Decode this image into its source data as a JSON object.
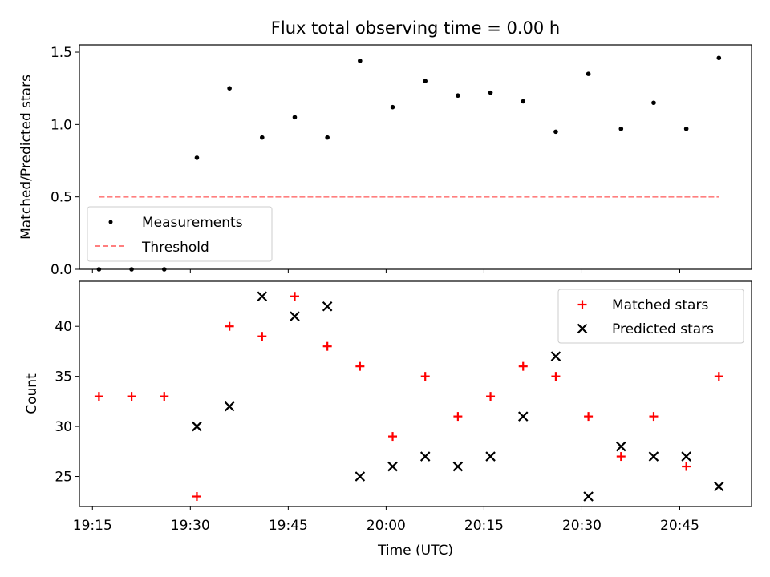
{
  "chart_data": [
    {
      "type": "scatter",
      "title": "Flux total observing time = 0.00 h",
      "xlabel": "",
      "ylabel": "Matched/Predicted stars",
      "ylim": [
        0,
        1.55
      ],
      "yticks": [
        0.0,
        0.5,
        1.0,
        1.5
      ],
      "ytick_labels": [
        "0.0",
        "0.5",
        "1.0",
        "1.5"
      ],
      "legend_position": "lower-left",
      "grid": false,
      "series": [
        {
          "name": "Measurements",
          "marker": "dot",
          "color": "#000000",
          "x": [
            "19:16",
            "19:21",
            "19:26",
            "19:31",
            "19:36",
            "19:41",
            "19:46",
            "19:51",
            "19:56",
            "20:01",
            "20:06",
            "20:11",
            "20:16",
            "20:21",
            "20:26",
            "20:31",
            "20:36",
            "20:41",
            "20:46",
            "20:51"
          ],
          "y": [
            0.0,
            0.0,
            0.0,
            0.77,
            1.25,
            0.91,
            1.05,
            0.91,
            1.44,
            1.12,
            1.3,
            1.2,
            1.22,
            1.16,
            0.95,
            1.35,
            0.97,
            1.15,
            0.97,
            1.46
          ]
        },
        {
          "name": "Threshold",
          "marker": "dashed-line",
          "color": "#ff7f7f",
          "x": [
            "19:16",
            "20:51"
          ],
          "y": [
            0.5,
            0.5
          ]
        }
      ]
    },
    {
      "type": "scatter",
      "title": "",
      "xlabel": "Time (UTC)",
      "ylabel": "Count",
      "ylim": [
        22,
        44.5
      ],
      "yticks": [
        25,
        30,
        35,
        40
      ],
      "ytick_labels": [
        "25",
        "30",
        "35",
        "40"
      ],
      "xlim": [
        "19:13",
        "20:56"
      ],
      "xticks": [
        "19:15",
        "19:30",
        "19:45",
        "20:00",
        "20:15",
        "20:30",
        "20:45"
      ],
      "legend_position": "upper-right",
      "grid": false,
      "series": [
        {
          "name": "Matched stars",
          "marker": "plus",
          "color": "#ff0000",
          "x": [
            "19:16",
            "19:21",
            "19:26",
            "19:31",
            "19:36",
            "19:41",
            "19:46",
            "19:51",
            "19:56",
            "20:01",
            "20:06",
            "20:11",
            "20:16",
            "20:21",
            "20:26",
            "20:31",
            "20:36",
            "20:41",
            "20:46",
            "20:51"
          ],
          "y": [
            33,
            33,
            33,
            23,
            40,
            39,
            43,
            38,
            36,
            29,
            35,
            31,
            33,
            36,
            35,
            31,
            27,
            31,
            26,
            35
          ]
        },
        {
          "name": "Predicted stars",
          "marker": "x",
          "color": "#000000",
          "x": [
            "19:31",
            "19:36",
            "19:41",
            "19:46",
            "19:51",
            "19:56",
            "20:01",
            "20:06",
            "20:11",
            "20:16",
            "20:21",
            "20:26",
            "20:31",
            "20:36",
            "20:41",
            "20:46",
            "20:51"
          ],
          "y": [
            30,
            32,
            43,
            41,
            42,
            25,
            26,
            27,
            26,
            27,
            31,
            37,
            23,
            28,
            27,
            27,
            24
          ]
        }
      ]
    }
  ]
}
